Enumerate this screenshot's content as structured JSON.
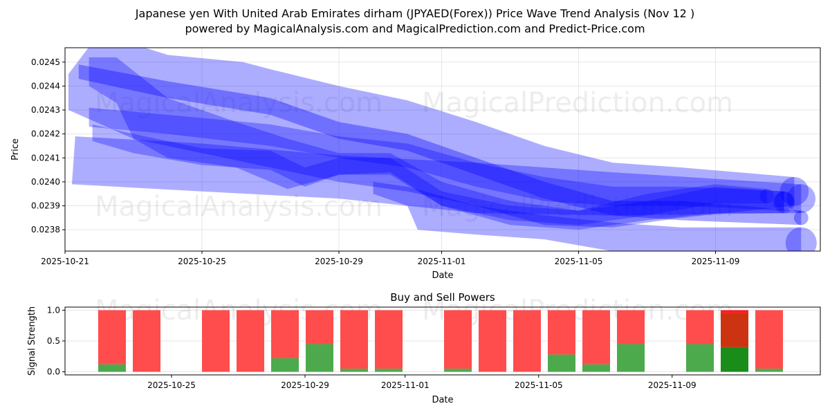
{
  "title_line1": "Japanese yen With United Arab Emirates dirham (JPYAED(Forex)) Price Wave Trend Analysis (Nov 12 )",
  "title_line2": "powered by MagicalAnalysis.com and MagicalPrediction.com and Predict-Price.com",
  "watermarks": [
    "MagicalAnalysis.com",
    "MagicalPrediction.com"
  ],
  "chart_data": [
    {
      "type": "area",
      "title": "",
      "xlabel": "Date",
      "ylabel": "Price",
      "x_origin_date": "2025-10-21",
      "xlim_days": [
        0,
        22.06
      ],
      "ylim": [
        0.023711,
        0.02456
      ],
      "yticks": [
        "0.0238",
        "0.0239",
        "0.0240",
        "0.0241",
        "0.0242",
        "0.0243",
        "0.0244",
        "0.0245"
      ],
      "xticks": [
        {
          "day": 0,
          "label": "2025-10-21"
        },
        {
          "day": 4,
          "label": "2025-10-25"
        },
        {
          "day": 8,
          "label": "2025-10-29"
        },
        {
          "day": 11,
          "label": "2025-11-01"
        },
        {
          "day": 15,
          "label": "2025-11-05"
        },
        {
          "day": 19,
          "label": "2025-11-09"
        }
      ],
      "grid": true,
      "color": "#0000ff",
      "bands": [
        {
          "upper": [
            [
              0.1,
              0.02445
            ],
            [
              1,
              0.02462
            ],
            [
              3,
              0.02453
            ],
            [
              5.2,
              0.0245
            ],
            [
              6,
              0.02447
            ],
            [
              8,
              0.0244
            ],
            [
              10,
              0.02434
            ],
            [
              12,
              0.02425
            ],
            [
              14,
              0.02415
            ],
            [
              16,
              0.02408
            ],
            [
              18,
              0.02406
            ],
            [
              21.3,
              0.02402
            ]
          ],
          "lower": [
            [
              0.1,
              0.0243
            ],
            [
              2,
              0.02418
            ],
            [
              4,
              0.02412
            ],
            [
              6,
              0.02406
            ],
            [
              8,
              0.024
            ],
            [
              10,
              0.02396
            ],
            [
              12,
              0.0239
            ],
            [
              14,
              0.02382
            ],
            [
              16,
              0.02381
            ],
            [
              18,
              0.02385
            ],
            [
              21.3,
              0.0239
            ]
          ],
          "opacity": 0.32
        },
        {
          "upper": [
            [
              0.3,
              0.02419
            ],
            [
              4,
              0.02416
            ],
            [
              8,
              0.02411
            ],
            [
              12,
              0.02408
            ],
            [
              16,
              0.02404
            ],
            [
              21.5,
              0.02399
            ]
          ],
          "lower": [
            [
              0.2,
              0.02399
            ],
            [
              4,
              0.02396
            ],
            [
              8,
              0.02393
            ],
            [
              12,
              0.02387
            ],
            [
              16,
              0.02386
            ],
            [
              21.5,
              0.02387
            ]
          ],
          "opacity": 0.32
        },
        {
          "upper": [
            [
              0.4,
              0.02449
            ],
            [
              3,
              0.02442
            ],
            [
              6,
              0.02435
            ],
            [
              8,
              0.02425
            ],
            [
              10,
              0.0242
            ],
            [
              12,
              0.0241
            ],
            [
              14,
              0.024
            ],
            [
              16,
              0.02392
            ],
            [
              18,
              0.02392
            ],
            [
              21.5,
              0.02388
            ]
          ],
          "lower": [
            [
              0.4,
              0.02443
            ],
            [
              3,
              0.02435
            ],
            [
              6,
              0.02428
            ],
            [
              8,
              0.02418
            ],
            [
              10,
              0.02413
            ],
            [
              12,
              0.02403
            ],
            [
              14,
              0.02393
            ],
            [
              16,
              0.02386
            ],
            [
              18,
              0.02384
            ],
            [
              21.5,
              0.02382
            ]
          ],
          "opacity": 0.35
        },
        {
          "upper": [
            [
              0.7,
              0.02452
            ],
            [
              1.5,
              0.02452
            ],
            [
              3,
              0.02435
            ],
            [
              5,
              0.02425
            ],
            [
              6.5,
              0.02418
            ],
            [
              8,
              0.02412
            ],
            [
              9.5,
              0.02412
            ],
            [
              11,
              0.024
            ],
            [
              13,
              0.02392
            ],
            [
              15,
              0.02388
            ],
            [
              17,
              0.02392
            ],
            [
              19,
              0.02398
            ],
            [
              21,
              0.02396
            ]
          ],
          "lower": [
            [
              0.7,
              0.0244
            ],
            [
              1.5,
              0.02433
            ],
            [
              2,
              0.02418
            ],
            [
              3,
              0.0241
            ],
            [
              5,
              0.02406
            ],
            [
              6.5,
              0.02397
            ],
            [
              8,
              0.02403
            ],
            [
              9.5,
              0.02404
            ],
            [
              11,
              0.0239
            ],
            [
              13,
              0.02382
            ],
            [
              15,
              0.0238
            ],
            [
              17,
              0.02384
            ],
            [
              19,
              0.02387
            ],
            [
              21,
              0.02387
            ]
          ],
          "opacity": 0.3
        },
        {
          "upper": [
            [
              0.7,
              0.02431
            ],
            [
              3,
              0.02428
            ],
            [
              6,
              0.02424
            ],
            [
              8,
              0.02419
            ],
            [
              10,
              0.02416
            ],
            [
              12,
              0.02408
            ],
            [
              14,
              0.02402
            ],
            [
              16,
              0.02398
            ],
            [
              18,
              0.02398
            ],
            [
              21,
              0.02396
            ]
          ],
          "lower": [
            [
              0.7,
              0.02423
            ],
            [
              3,
              0.0242
            ],
            [
              6,
              0.02415
            ],
            [
              8,
              0.0241
            ],
            [
              10,
              0.02406
            ],
            [
              12,
              0.02398
            ],
            [
              14,
              0.02392
            ],
            [
              16,
              0.0239
            ],
            [
              18,
              0.0239
            ],
            [
              21,
              0.02388
            ]
          ],
          "opacity": 0.3
        },
        {
          "upper": [
            [
              9,
              0.024
            ],
            [
              10,
              0.02398
            ],
            [
              12,
              0.0239
            ],
            [
              14,
              0.02386
            ],
            [
              16,
              0.02383
            ],
            [
              18,
              0.02381
            ],
            [
              21.5,
              0.02381
            ]
          ],
          "lower": [
            [
              9,
              0.02395
            ],
            [
              10,
              0.0239
            ],
            [
              10.3,
              0.0238
            ],
            [
              12,
              0.02378
            ],
            [
              14,
              0.02376
            ],
            [
              16,
              0.02371
            ],
            [
              18,
              0.02368
            ],
            [
              21.5,
              0.02368
            ]
          ],
          "opacity": 0.32
        },
        {
          "upper": [
            [
              0.8,
              0.02424
            ],
            [
              2,
              0.0242
            ],
            [
              4,
              0.02414
            ],
            [
              6,
              0.02413
            ],
            [
              7,
              0.02406
            ],
            [
              8,
              0.0241
            ],
            [
              9.5,
              0.0241
            ],
            [
              11,
              0.02396
            ],
            [
              13,
              0.0239
            ],
            [
              15,
              0.02388
            ],
            [
              17,
              0.02395
            ],
            [
              19,
              0.02399
            ],
            [
              20.5,
              0.02397
            ]
          ],
          "lower": [
            [
              0.8,
              0.02417
            ],
            [
              2,
              0.02412
            ],
            [
              4,
              0.02407
            ],
            [
              6,
              0.02405
            ],
            [
              7,
              0.02398
            ],
            [
              8,
              0.02403
            ],
            [
              9.5,
              0.02403
            ],
            [
              11,
              0.0239
            ],
            [
              13,
              0.02384
            ],
            [
              15,
              0.02382
            ],
            [
              17,
              0.02386
            ],
            [
              19,
              0.02391
            ],
            [
              20.5,
              0.02391
            ]
          ],
          "opacity": 0.3
        }
      ]
    },
    {
      "type": "bar",
      "title": "Buy and Sell Powers",
      "xlabel": "Date",
      "ylabel": "Signal Strength",
      "ylim": [
        -0.05,
        1.05
      ],
      "yticks": [
        "0.0",
        "0.5",
        "1.0"
      ],
      "xticks": [
        {
          "day": 4,
          "label": "2025-10-25"
        },
        {
          "day": 8,
          "label": "2025-10-29"
        },
        {
          "day": 11,
          "label": "2025-11-01"
        },
        {
          "day": 15,
          "label": "2025-11-05"
        },
        {
          "day": 19,
          "label": "2025-11-09"
        }
      ],
      "grid": true,
      "sell_color": "#ff4d4d",
      "buy_color": "#4caa4c",
      "bars": [
        {
          "slot": 0,
          "buy": 0.12
        },
        {
          "slot": 1,
          "buy": 0.0
        },
        {
          "slot": 3,
          "buy": 0.0
        },
        {
          "slot": 4,
          "buy": 0.0
        },
        {
          "slot": 5,
          "buy": 0.22
        },
        {
          "slot": 6,
          "buy": 0.45
        },
        {
          "slot": 7,
          "buy": 0.05
        },
        {
          "slot": 8,
          "buy": 0.05
        },
        {
          "slot": 10,
          "buy": 0.05
        },
        {
          "slot": 11,
          "buy": 0.0
        },
        {
          "slot": 12,
          "buy": 0.0
        },
        {
          "slot": 13,
          "buy": 0.28
        },
        {
          "slot": 14,
          "buy": 0.12
        },
        {
          "slot": 15,
          "buy": 0.45
        },
        {
          "slot": 17,
          "buy": 0.45
        },
        {
          "slot": 18,
          "buy": 0.4,
          "highlight": true,
          "top_sell": 0.05
        },
        {
          "slot": 19,
          "buy": 0.05
        }
      ]
    }
  ]
}
